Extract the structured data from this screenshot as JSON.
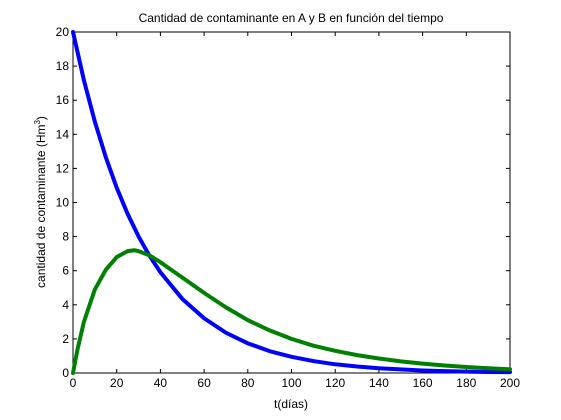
{
  "chart_data": {
    "type": "line",
    "title": "Cantidad de contaminante en A y B en función del tiempo",
    "xlabel": "t(días)",
    "ylabel_main": "cantidad de contaminante (Hm",
    "ylabel_sup": "3",
    "ylabel_close": ")",
    "xlim": [
      0,
      200
    ],
    "ylim": [
      0,
      20
    ],
    "xticks": [
      0,
      20,
      40,
      60,
      80,
      100,
      120,
      140,
      160,
      180,
      200
    ],
    "yticks": [
      0,
      2,
      4,
      6,
      8,
      10,
      12,
      14,
      16,
      18,
      20
    ],
    "grid": false,
    "series": [
      {
        "color": "#0000ff",
        "x": [
          0,
          5,
          10,
          15,
          20,
          25,
          30,
          35,
          40,
          50,
          60,
          70,
          80,
          90,
          100,
          110,
          120,
          130,
          140,
          150,
          160,
          170,
          180,
          190,
          200
        ],
        "y": [
          20.0,
          17.17,
          14.74,
          12.66,
          10.87,
          9.33,
          8.01,
          6.88,
          5.91,
          4.35,
          3.21,
          2.36,
          1.74,
          1.28,
          0.95,
          0.7,
          0.51,
          0.38,
          0.28,
          0.21,
          0.15,
          0.11,
          0.08,
          0.06,
          0.05
        ]
      },
      {
        "color": "#008000",
        "x": [
          0,
          2,
          5,
          10,
          15,
          20,
          25,
          28,
          30,
          35,
          40,
          45,
          50,
          60,
          70,
          80,
          90,
          100,
          110,
          120,
          130,
          140,
          150,
          160,
          170,
          180,
          190,
          200
        ],
        "y": [
          0.0,
          1.35,
          3.0,
          4.9,
          6.05,
          6.8,
          7.15,
          7.2,
          7.15,
          6.9,
          6.5,
          6.05,
          5.6,
          4.7,
          3.85,
          3.1,
          2.5,
          2.0,
          1.6,
          1.3,
          1.05,
          0.85,
          0.68,
          0.55,
          0.44,
          0.35,
          0.28,
          0.22
        ]
      }
    ]
  }
}
